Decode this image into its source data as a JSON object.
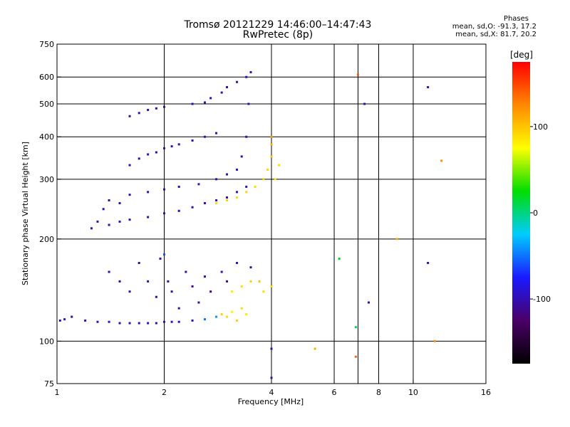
{
  "header": {
    "title_line1": "Tromsø 20121229 14:46:00–14:47:43",
    "title_line2": "RwPretec (8p)",
    "stats_title": "Phases",
    "stats_line1": "mean, sd,O: -91.3, 17.2",
    "stats_line2": "mean, sd,X: 81.7, 20.2"
  },
  "colorbar": {
    "unit_label": "[deg]",
    "ticks": [
      {
        "value": 100,
        "label": "100"
      },
      {
        "value": 0,
        "label": "0"
      },
      {
        "value": -100,
        "label": "-100"
      }
    ],
    "range": [
      -175,
      175
    ],
    "colors": [
      "#000000",
      "#4a0066",
      "#1a1aff",
      "#00ccff",
      "#00dd00",
      "#ffff00",
      "#ff8800",
      "#ff0000"
    ]
  },
  "chart_data": {
    "type": "scatter",
    "title": "Tromsø 20121229 14:46:00–14:47:43",
    "subtitle": "RwPretec (8p)",
    "xlabel": "Frequency [MHz]",
    "ylabel": "Stationary phase Virtual Height [km]",
    "x_scale": "log",
    "y_scale": "log",
    "xlim": [
      1,
      16
    ],
    "ylim": [
      75,
      750
    ],
    "x_ticks": [
      {
        "value": 1,
        "label": "1"
      },
      {
        "value": 2,
        "label": "2"
      },
      {
        "value": 4,
        "label": "4"
      },
      {
        "value": 6,
        "label": "6"
      },
      {
        "value": 8,
        "label": "8"
      },
      {
        "value": 10,
        "label": "10"
      },
      {
        "value": 16,
        "label": "16"
      }
    ],
    "y_ticks": [
      {
        "value": 75,
        "label": "75"
      },
      {
        "value": 100,
        "label": "100"
      },
      {
        "value": 200,
        "label": "200"
      },
      {
        "value": 300,
        "label": "300"
      },
      {
        "value": 400,
        "label": "400"
      },
      {
        "value": 500,
        "label": "500"
      },
      {
        "value": 600,
        "label": "600"
      },
      {
        "value": 750,
        "label": "750"
      }
    ],
    "x_grid": [
      2,
      4,
      6,
      7,
      8,
      10
    ],
    "y_grid": [
      100,
      200,
      300,
      400,
      500,
      600
    ],
    "grid": true,
    "color_dimension": "phase [deg]",
    "series": [
      {
        "values": [
          [
            1.02,
            115,
            -95
          ],
          [
            1.05,
            116,
            -95
          ],
          [
            1.1,
            118,
            -100
          ],
          [
            1.2,
            115,
            -95
          ],
          [
            1.3,
            114,
            -100
          ],
          [
            1.4,
            114,
            -95
          ],
          [
            1.5,
            113,
            -100
          ],
          [
            1.6,
            113,
            -95
          ],
          [
            1.7,
            113,
            -100
          ],
          [
            1.8,
            113,
            -95
          ],
          [
            1.9,
            113,
            -100
          ],
          [
            2.0,
            114,
            -95
          ],
          [
            2.1,
            114,
            -90
          ],
          [
            2.2,
            114,
            -95
          ],
          [
            2.4,
            115,
            -90
          ],
          [
            2.6,
            116,
            -50
          ],
          [
            2.8,
            118,
            -40
          ]
        ]
      },
      {
        "values": [
          [
            1.4,
            160,
            -100
          ],
          [
            1.5,
            150,
            -110
          ],
          [
            1.6,
            140,
            -100
          ],
          [
            1.7,
            170,
            -105
          ],
          [
            1.8,
            150,
            -100
          ],
          [
            1.9,
            135,
            -110
          ],
          [
            1.95,
            175,
            -100
          ],
          [
            2.0,
            180,
            -60
          ],
          [
            2.05,
            150,
            -100
          ],
          [
            2.1,
            140,
            -110
          ],
          [
            2.2,
            125,
            -100
          ],
          [
            2.3,
            160,
            -100
          ],
          [
            2.4,
            145,
            -110
          ],
          [
            2.5,
            130,
            -100
          ],
          [
            2.6,
            155,
            -100
          ],
          [
            2.7,
            140,
            -120
          ],
          [
            2.9,
            160,
            -100
          ],
          [
            3.0,
            150,
            -110
          ],
          [
            3.2,
            170,
            -100
          ],
          [
            3.5,
            165,
            -110
          ]
        ]
      },
      {
        "values": [
          [
            2.9,
            120,
            95
          ],
          [
            3.0,
            118,
            90
          ],
          [
            3.1,
            122,
            80
          ],
          [
            3.2,
            115,
            95
          ],
          [
            3.3,
            125,
            90
          ],
          [
            3.4,
            120,
            85
          ],
          [
            3.1,
            140,
            85
          ],
          [
            3.3,
            145,
            90
          ],
          [
            3.5,
            150,
            95
          ],
          [
            3.7,
            150,
            100
          ],
          [
            3.8,
            140,
            90
          ],
          [
            4.0,
            145,
            95
          ]
        ]
      },
      {
        "values": [
          [
            1.25,
            215,
            -100
          ],
          [
            1.3,
            225,
            -100
          ],
          [
            1.35,
            245,
            -100
          ],
          [
            1.4,
            260,
            -110
          ],
          [
            1.5,
            255,
            -100
          ],
          [
            1.6,
            270,
            -100
          ],
          [
            1.8,
            275,
            -100
          ],
          [
            2.0,
            280,
            -100
          ],
          [
            2.2,
            285,
            -100
          ],
          [
            2.5,
            290,
            -95
          ],
          [
            2.8,
            300,
            -100
          ],
          [
            3.0,
            310,
            -100
          ],
          [
            3.2,
            320,
            -95
          ],
          [
            3.3,
            350,
            -100
          ],
          [
            3.4,
            400,
            -100
          ],
          [
            3.45,
            500,
            -100
          ],
          [
            3.5,
            620,
            -100
          ]
        ]
      },
      {
        "values": [
          [
            1.4,
            220,
            -100
          ],
          [
            1.5,
            225,
            -100
          ],
          [
            1.6,
            228,
            -100
          ],
          [
            1.8,
            232,
            -100
          ],
          [
            2.0,
            238,
            -100
          ],
          [
            2.2,
            242,
            -100
          ],
          [
            2.4,
            248,
            -100
          ],
          [
            2.6,
            255,
            -100
          ],
          [
            2.8,
            260,
            -100
          ],
          [
            3.0,
            265,
            -100
          ],
          [
            3.2,
            275,
            -95
          ],
          [
            3.4,
            285,
            -95
          ]
        ]
      },
      {
        "values": [
          [
            2.8,
            255,
            90
          ],
          [
            3.0,
            260,
            95
          ],
          [
            3.2,
            265,
            90
          ],
          [
            3.4,
            275,
            95
          ],
          [
            3.6,
            285,
            90
          ],
          [
            3.8,
            300,
            95
          ],
          [
            3.9,
            320,
            90
          ],
          [
            4.0,
            350,
            100
          ],
          [
            4.0,
            380,
            110
          ],
          [
            4.0,
            400,
            120
          ],
          [
            4.2,
            330,
            90
          ],
          [
            4.1,
            300,
            85
          ]
        ]
      },
      {
        "values": [
          [
            1.6,
            330,
            -100
          ],
          [
            1.7,
            345,
            -100
          ],
          [
            1.8,
            355,
            -100
          ],
          [
            1.9,
            360,
            -100
          ],
          [
            2.0,
            370,
            -100
          ],
          [
            2.1,
            375,
            -95
          ],
          [
            2.2,
            380,
            -100
          ],
          [
            2.4,
            390,
            -100
          ],
          [
            2.6,
            400,
            -95
          ],
          [
            2.8,
            410,
            -100
          ]
        ]
      },
      {
        "values": [
          [
            1.6,
            460,
            -100
          ],
          [
            1.7,
            470,
            -100
          ],
          [
            1.8,
            480,
            -100
          ],
          [
            1.9,
            485,
            -100
          ],
          [
            2.0,
            490,
            -100
          ],
          [
            2.4,
            500,
            -100
          ],
          [
            2.6,
            505,
            -95
          ],
          [
            2.7,
            520,
            -100
          ],
          [
            2.9,
            540,
            -100
          ],
          [
            3.0,
            560,
            -100
          ],
          [
            3.2,
            580,
            -100
          ],
          [
            3.4,
            600,
            -100
          ]
        ]
      },
      {
        "values": [
          [
            5.3,
            95,
            110
          ],
          [
            6.2,
            175,
            20
          ],
          [
            6.9,
            110,
            10
          ],
          [
            6.9,
            90,
            140
          ],
          [
            7.5,
            130,
            -100
          ],
          [
            7.3,
            500,
            -100
          ],
          [
            7.0,
            610,
            140
          ],
          [
            9.0,
            200,
            110
          ],
          [
            11.0,
            170,
            -100
          ],
          [
            11.0,
            560,
            -100
          ],
          [
            12.0,
            340,
            120
          ],
          [
            11.5,
            100,
            120
          ],
          [
            4.0,
            78,
            -100
          ],
          [
            4.0,
            95,
            -100
          ]
        ]
      }
    ]
  }
}
